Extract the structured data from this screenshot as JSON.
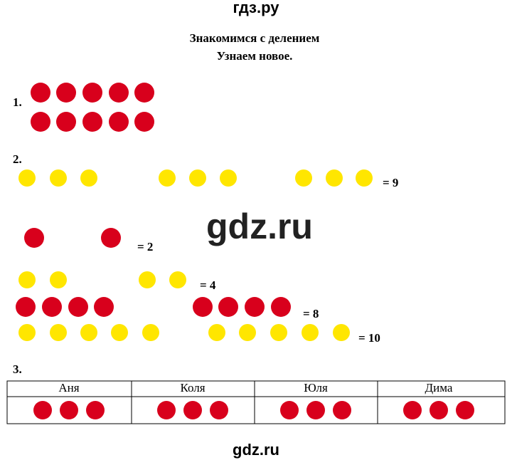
{
  "header": {
    "site": "гдз.ру"
  },
  "title": {
    "line1": "Знакомимся с делением",
    "line2": "Узнаем новое."
  },
  "task1": {
    "number": "1."
  },
  "task2": {
    "number": "2.",
    "equations": [
      "= 9",
      "= 2",
      "= 4",
      "= 8",
      "= 10"
    ]
  },
  "watermark": "gdz.ru",
  "task3": {
    "number": "3.",
    "table": {
      "header": [
        "Аня",
        "Коля",
        "Юля",
        "Дима"
      ]
    }
  },
  "footer": {
    "site": "gdz.ru"
  }
}
